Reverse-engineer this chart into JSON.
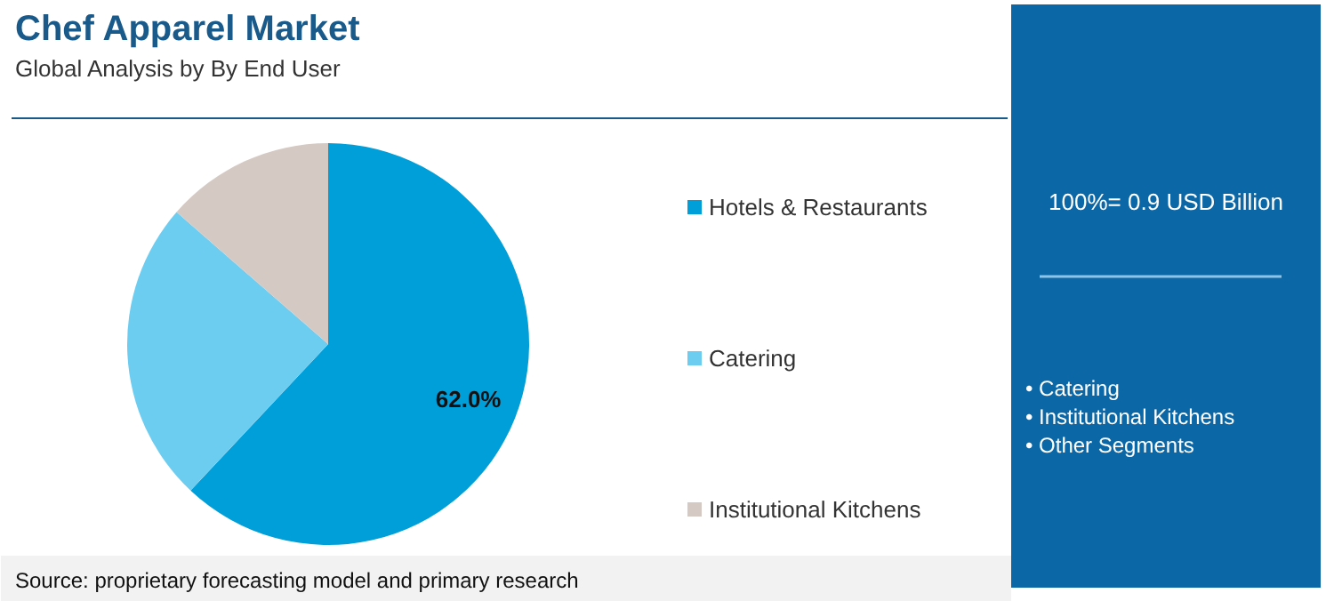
{
  "chart_data": {
    "type": "pie",
    "title": "Chef Apparel Market",
    "subtitle": "Global Analysis by By End User",
    "categories": [
      "Hotels & Restaurants",
      "Catering",
      "Institutional Kitchens"
    ],
    "values": [
      62.0,
      24.4,
      13.6
    ],
    "colors": [
      "#009fd9",
      "#6dcdf1",
      "#d5c9c4"
    ],
    "value_labels": [
      "62.0%",
      null,
      null
    ],
    "legend": "right",
    "annotations": [
      "100%= 0.9 USD Billion",
      "• Catering",
      "• Institutional Kitchens",
      "• Other Segments",
      "Source: proprietary forecasting model and primary research"
    ]
  }
}
